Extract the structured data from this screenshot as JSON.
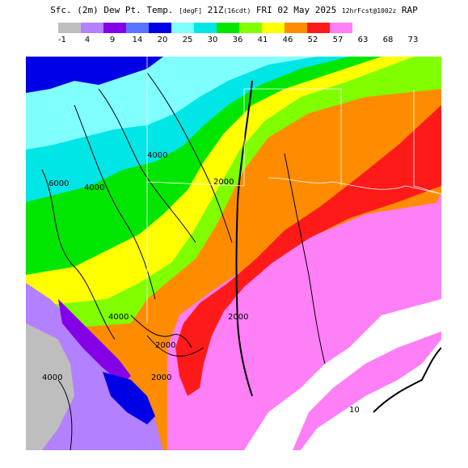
{
  "header": {
    "title_main": "Sfc. (2m) Dew Pt. Temp.",
    "title_units": "[degF]",
    "title_time": "21Z",
    "title_fhr": "(16cdt)",
    "title_date": "FRI 02 May 2025",
    "title_fcst": "12hrFcst@1002z",
    "title_model": "RAP"
  },
  "colorbar": {
    "colors": [
      "#bebebe",
      "#b380ff",
      "#8400e6",
      "#5a74ff",
      "#0000e6",
      "#80ffff",
      "#00e6e6",
      "#00e600",
      "#80ff00",
      "#ffff00",
      "#ff8c00",
      "#ff1a1a",
      "#ff7ff7"
    ],
    "labels": [
      "-1",
      "4",
      "9",
      "14",
      "20",
      "25",
      "30",
      "36",
      "41",
      "46",
      "52",
      "57",
      "63",
      "68",
      "73"
    ]
  },
  "map": {
    "contour_labels": [
      "6000",
      "4000",
      "4000",
      "2000",
      "2000",
      "4000",
      "2000",
      "4000",
      "2000",
      "10"
    ]
  }
}
